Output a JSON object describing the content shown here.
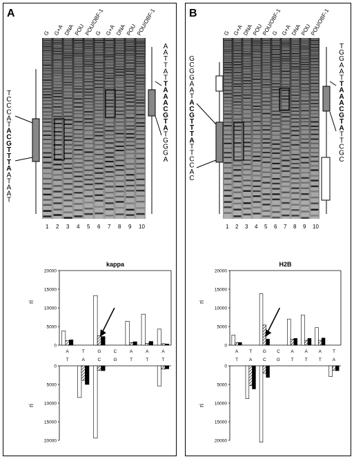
{
  "figure": {
    "panel_labels": [
      "A",
      "B"
    ],
    "panels": [
      {
        "label": "A",
        "lane_headers": [
          "G",
          "G+A",
          "DNA",
          "POU",
          "POU/OBF-1",
          "G",
          "G+A",
          "DNA",
          "POU",
          "POU/OBF-1"
        ],
        "lane_numbers": [
          "1",
          "2",
          "3",
          "4",
          "5",
          "6",
          "7",
          "8",
          "9",
          "10"
        ],
        "left_sequence": [
          {
            "b": "T",
            "bold": false
          },
          {
            "b": "C",
            "bold": false
          },
          {
            "b": "C",
            "bold": false
          },
          {
            "b": "C",
            "bold": false
          },
          {
            "b": "A",
            "bold": false
          },
          {
            "b": "T",
            "bold": false
          },
          {
            "b": "A",
            "bold": true
          },
          {
            "b": "C",
            "bold": true
          },
          {
            "b": "G",
            "bold": true
          },
          {
            "b": "T",
            "bold": true
          },
          {
            "b": "T",
            "bold": true
          },
          {
            "b": "T",
            "bold": true
          },
          {
            "b": "A",
            "bold": true
          },
          {
            "b": "A",
            "bold": false
          },
          {
            "b": "T",
            "bold": false
          },
          {
            "b": "A",
            "bold": false
          },
          {
            "b": "A",
            "bold": false
          },
          {
            "b": "T",
            "bold": false
          }
        ],
        "right_sequence": [
          {
            "b": "A",
            "bold": false
          },
          {
            "b": "A",
            "bold": false
          },
          {
            "b": "T",
            "bold": false
          },
          {
            "b": "T",
            "bold": false
          },
          {
            "b": "A",
            "bold": false
          },
          {
            "b": "T",
            "bold": false
          },
          {
            "b": "T",
            "bold": true
          },
          {
            "b": "A",
            "bold": true
          },
          {
            "b": "A",
            "bold": true
          },
          {
            "b": "A",
            "bold": true
          },
          {
            "b": "C",
            "bold": true
          },
          {
            "b": "G",
            "bold": true
          },
          {
            "b": "T",
            "bold": true
          },
          {
            "b": "A",
            "bold": true
          },
          {
            "b": "T",
            "bold": false
          },
          {
            "b": "G",
            "bold": false
          },
          {
            "b": "G",
            "bold": false
          },
          {
            "b": "G",
            "bold": false
          },
          {
            "b": "A",
            "bold": false
          }
        ]
      },
      {
        "label": "B",
        "lane_headers": [
          "G",
          "G+A",
          "DNA",
          "POU",
          "POU/OBF-1",
          "G",
          "G+A",
          "DNA",
          "POU",
          "POU/OBF-1"
        ],
        "lane_numbers": [
          "1",
          "2",
          "3",
          "4",
          "5",
          "6",
          "7",
          "8",
          "9",
          "10"
        ],
        "left_sequence": [
          {
            "b": "G",
            "bold": false
          },
          {
            "b": "C",
            "bold": false
          },
          {
            "b": "G",
            "bold": false
          },
          {
            "b": "G",
            "bold": false
          },
          {
            "b": "A",
            "bold": false
          },
          {
            "b": "A",
            "bold": false
          },
          {
            "b": "T",
            "bold": false
          },
          {
            "b": "A",
            "bold": true
          },
          {
            "b": "C",
            "bold": true
          },
          {
            "b": "G",
            "bold": true
          },
          {
            "b": "T",
            "bold": true
          },
          {
            "b": "T",
            "bold": true
          },
          {
            "b": "T",
            "bold": true
          },
          {
            "b": "A",
            "bold": true
          },
          {
            "b": "T",
            "bold": false
          },
          {
            "b": "T",
            "bold": false
          },
          {
            "b": "C",
            "bold": false
          },
          {
            "b": "C",
            "bold": false
          },
          {
            "b": "A",
            "bold": false
          },
          {
            "b": "C",
            "bold": false
          }
        ],
        "right_sequence": [
          {
            "b": "T",
            "bold": false
          },
          {
            "b": "G",
            "bold": false
          },
          {
            "b": "G",
            "bold": false
          },
          {
            "b": "A",
            "bold": false
          },
          {
            "b": "A",
            "bold": false
          },
          {
            "b": "T",
            "bold": false
          },
          {
            "b": "T",
            "bold": true
          },
          {
            "b": "A",
            "bold": true
          },
          {
            "b": "A",
            "bold": true
          },
          {
            "b": "A",
            "bold": true
          },
          {
            "b": "C",
            "bold": true
          },
          {
            "b": "G",
            "bold": true
          },
          {
            "b": "T",
            "bold": true
          },
          {
            "b": "A",
            "bold": true
          },
          {
            "b": "T",
            "bold": false
          },
          {
            "b": "T",
            "bold": false
          },
          {
            "b": "C",
            "bold": false
          },
          {
            "b": "G",
            "bold": false
          },
          {
            "b": "C",
            "bold": false
          }
        ]
      }
    ]
  },
  "chart_data": [
    {
      "type": "bar",
      "title": "kappa",
      "ylabel": "ri",
      "ylim": [
        -20000,
        20000
      ],
      "yticks": [
        "20000",
        "15000",
        "10000",
        "5000",
        "0",
        "5000",
        "10000",
        "15000",
        "20000"
      ],
      "top_strand_labels": [
        "A",
        "T",
        "G",
        "C",
        "A",
        "A",
        "A"
      ],
      "bottom_strand_labels": [
        "T",
        "A",
        "C",
        "G",
        "T",
        "T",
        "T"
      ],
      "series": [
        {
          "name": "DNA",
          "pattern": "white",
          "values": [
            3800,
            0,
            13300,
            0,
            6400,
            8300,
            4300
          ]
        },
        {
          "name": "POU",
          "pattern": "hatched",
          "values": [
            1200,
            0,
            2500,
            0,
            700,
            500,
            400
          ]
        },
        {
          "name": "POU/OBF-1",
          "pattern": "black",
          "values": [
            1400,
            0,
            2300,
            0,
            900,
            1000,
            300
          ]
        }
      ],
      "series_bottom": [
        {
          "name": "DNA",
          "pattern": "white",
          "values": [
            0,
            -8500,
            -19400,
            0,
            0,
            0,
            -5400
          ]
        },
        {
          "name": "POU",
          "pattern": "hatched",
          "values": [
            0,
            -3900,
            -1200,
            0,
            0,
            0,
            -900
          ]
        },
        {
          "name": "POU/OBF-1",
          "pattern": "black",
          "values": [
            0,
            -5000,
            -1300,
            0,
            0,
            0,
            -800
          ]
        }
      ]
    },
    {
      "type": "bar",
      "title": "H2B",
      "ylabel": "ri",
      "ylim": [
        -20000,
        20000
      ],
      "yticks": [
        "20000",
        "15000",
        "10000",
        "5000",
        "0",
        "5000",
        "10000",
        "15000",
        "20000"
      ],
      "top_strand_labels": [
        "A",
        "T",
        "G",
        "C",
        "A",
        "A",
        "A",
        "T"
      ],
      "bottom_strand_labels": [
        "T",
        "A",
        "C",
        "G",
        "T",
        "T",
        "T",
        "A"
      ],
      "series": [
        {
          "name": "DNA",
          "pattern": "white",
          "values": [
            2700,
            0,
            13800,
            0,
            7000,
            8100,
            4700,
            0
          ]
        },
        {
          "name": "POU",
          "pattern": "hatched",
          "values": [
            700,
            0,
            5400,
            0,
            1600,
            1300,
            1300,
            0
          ]
        },
        {
          "name": "POU/OBF-1",
          "pattern": "black",
          "values": [
            700,
            0,
            1600,
            0,
            1800,
            1800,
            1900,
            0
          ]
        }
      ],
      "series_bottom": [
        {
          "name": "DNA",
          "pattern": "white",
          "values": [
            0,
            -8800,
            -20500,
            0,
            0,
            0,
            0,
            -2900
          ]
        },
        {
          "name": "POU",
          "pattern": "hatched",
          "values": [
            0,
            -5300,
            -2000,
            0,
            0,
            0,
            0,
            -1200
          ]
        },
        {
          "name": "POU/OBF-1",
          "pattern": "black",
          "values": [
            0,
            -6200,
            -3100,
            0,
            0,
            0,
            0,
            -1300
          ]
        }
      ]
    }
  ]
}
